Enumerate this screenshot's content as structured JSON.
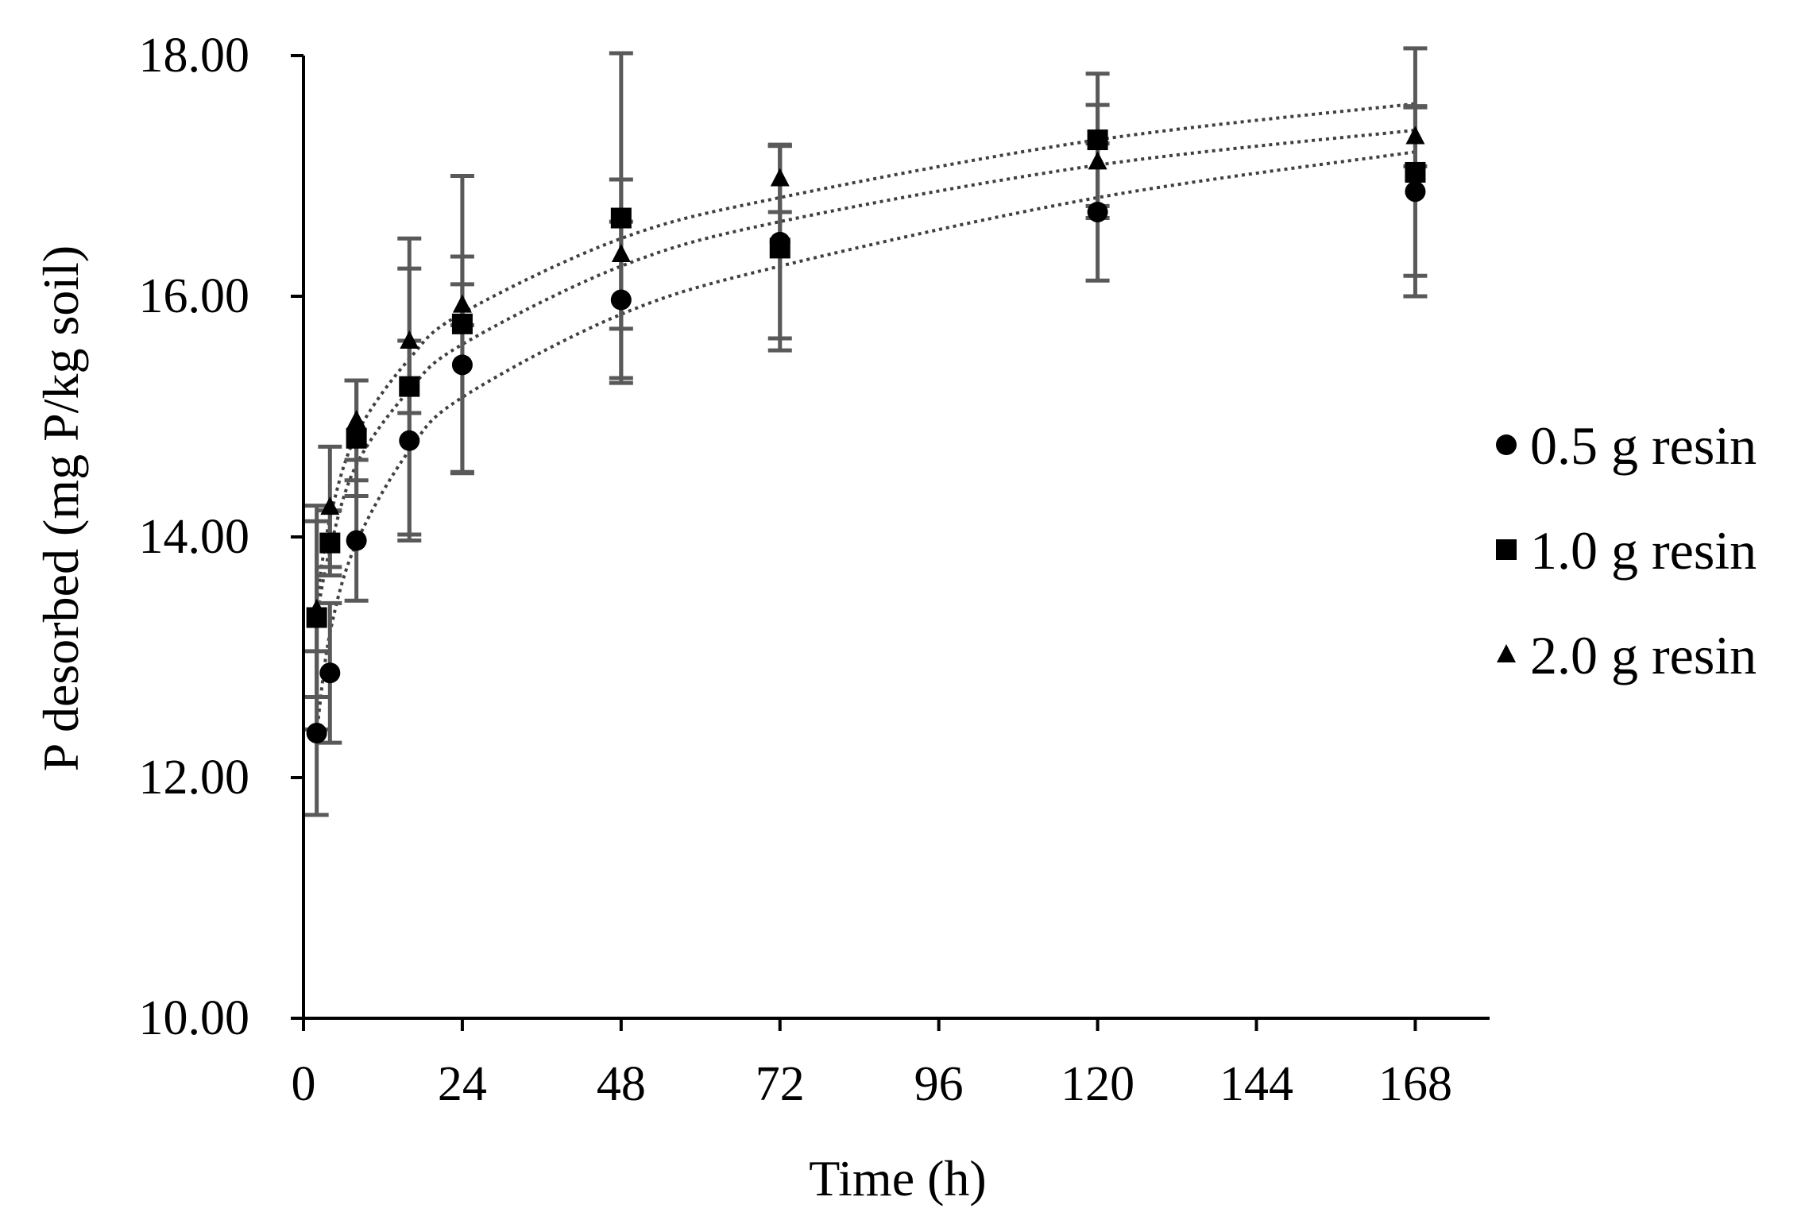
{
  "chart_data": {
    "type": "scatter",
    "title": "",
    "xlabel": "Time (h)",
    "ylabel": "P desorbed (mg P/kg soil)",
    "xlim": [
      0,
      180
    ],
    "ylim": [
      10,
      18
    ],
    "x_ticks": [
      0,
      24,
      48,
      72,
      96,
      120,
      144,
      168
    ],
    "x_tick_labels": [
      "0",
      "24",
      "48",
      "72",
      "96",
      "120",
      "144",
      "168"
    ],
    "y_ticks": [
      10,
      12,
      14,
      16,
      18
    ],
    "y_tick_labels": [
      "10.00",
      "12.00",
      "14.00",
      "16.00",
      "18.00"
    ],
    "grid": false,
    "legend_position": "right",
    "x": [
      2,
      4,
      8,
      16,
      24,
      48,
      72,
      120,
      168
    ],
    "series": [
      {
        "name": "0.5 g resin",
        "marker": "circle",
        "values": [
          12.37,
          12.87,
          13.97,
          14.8,
          15.43,
          15.97,
          16.45,
          16.7,
          16.87
        ],
        "errors": [
          0.68,
          0.58,
          0.5,
          0.83,
          0.9,
          0.65,
          0.8,
          0.57,
          0.7
        ],
        "trend": [
          12.37,
          13.2,
          13.95,
          14.72,
          15.16,
          15.85,
          16.25,
          16.82,
          17.2
        ]
      },
      {
        "name": "1.0 g resin",
        "marker": "square",
        "values": [
          13.33,
          13.95,
          14.82,
          15.25,
          15.77,
          16.65,
          16.4,
          17.3,
          17.03
        ],
        "errors": [
          0.93,
          0.27,
          0.48,
          1.23,
          1.23,
          1.37,
          0.85,
          0.55,
          1.03
        ],
        "trend": [
          13.33,
          13.9,
          14.6,
          15.22,
          15.6,
          16.25,
          16.62,
          17.09,
          17.38
        ]
      },
      {
        "name": "2.0 g resin",
        "marker": "triangle",
        "values": [
          13.4,
          14.25,
          14.97,
          15.63,
          15.93,
          16.35,
          16.98,
          17.12,
          17.33
        ],
        "errors": [
          0.73,
          0.5,
          0.33,
          0.6,
          0.17,
          0.62,
          0.28,
          0.47,
          0.25
        ],
        "trend": [
          13.45,
          14.15,
          14.85,
          15.48,
          15.86,
          16.48,
          16.82,
          17.3,
          17.6
        ]
      }
    ]
  },
  "colors": {
    "marker": "#000000",
    "error_bar": "#595959",
    "trend_line": "#404040",
    "axis": "#000000"
  }
}
